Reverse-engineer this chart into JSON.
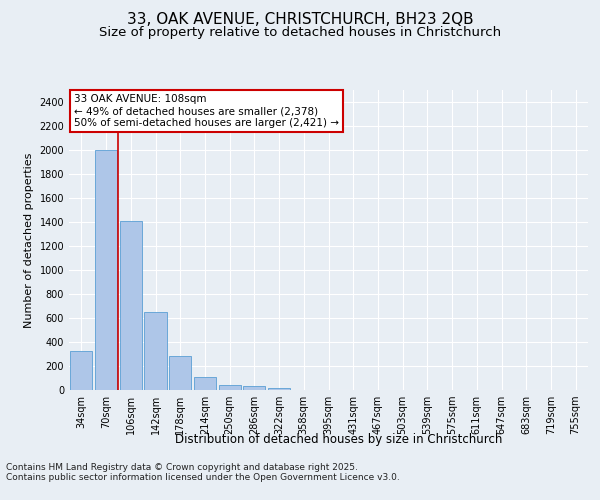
{
  "title_line1": "33, OAK AVENUE, CHRISTCHURCH, BH23 2QB",
  "title_line2": "Size of property relative to detached houses in Christchurch",
  "xlabel": "Distribution of detached houses by size in Christchurch",
  "ylabel": "Number of detached properties",
  "categories": [
    "34sqm",
    "70sqm",
    "106sqm",
    "142sqm",
    "178sqm",
    "214sqm",
    "250sqm",
    "286sqm",
    "322sqm",
    "358sqm",
    "395sqm",
    "431sqm",
    "467sqm",
    "503sqm",
    "539sqm",
    "575sqm",
    "611sqm",
    "647sqm",
    "683sqm",
    "719sqm",
    "755sqm"
  ],
  "values": [
    325,
    2000,
    1410,
    650,
    285,
    105,
    45,
    30,
    15,
    0,
    0,
    0,
    0,
    0,
    0,
    0,
    0,
    0,
    0,
    0,
    0
  ],
  "bar_color": "#aec6e8",
  "bar_edge_color": "#5a9fd4",
  "vline_color": "#cc0000",
  "vline_x_index": 1,
  "annotation_text_line1": "33 OAK AVENUE: 108sqm",
  "annotation_text_line2": "← 49% of detached houses are smaller (2,378)",
  "annotation_text_line3": "50% of semi-detached houses are larger (2,421) →",
  "annotation_box_color": "#ffffff",
  "annotation_box_edge_color": "#cc0000",
  "ylim": [
    0,
    2500
  ],
  "yticks": [
    0,
    200,
    400,
    600,
    800,
    1000,
    1200,
    1400,
    1600,
    1800,
    2000,
    2200,
    2400
  ],
  "background_color": "#e8eef4",
  "plot_bg_color": "#e8eef4",
  "grid_color": "#ffffff",
  "footer_line1": "Contains HM Land Registry data © Crown copyright and database right 2025.",
  "footer_line2": "Contains public sector information licensed under the Open Government Licence v3.0.",
  "title_fontsize": 11,
  "subtitle_fontsize": 9.5,
  "axis_label_fontsize": 8.5,
  "tick_fontsize": 7,
  "annotation_fontsize": 7.5,
  "footer_fontsize": 6.5,
  "ylabel_fontsize": 8
}
